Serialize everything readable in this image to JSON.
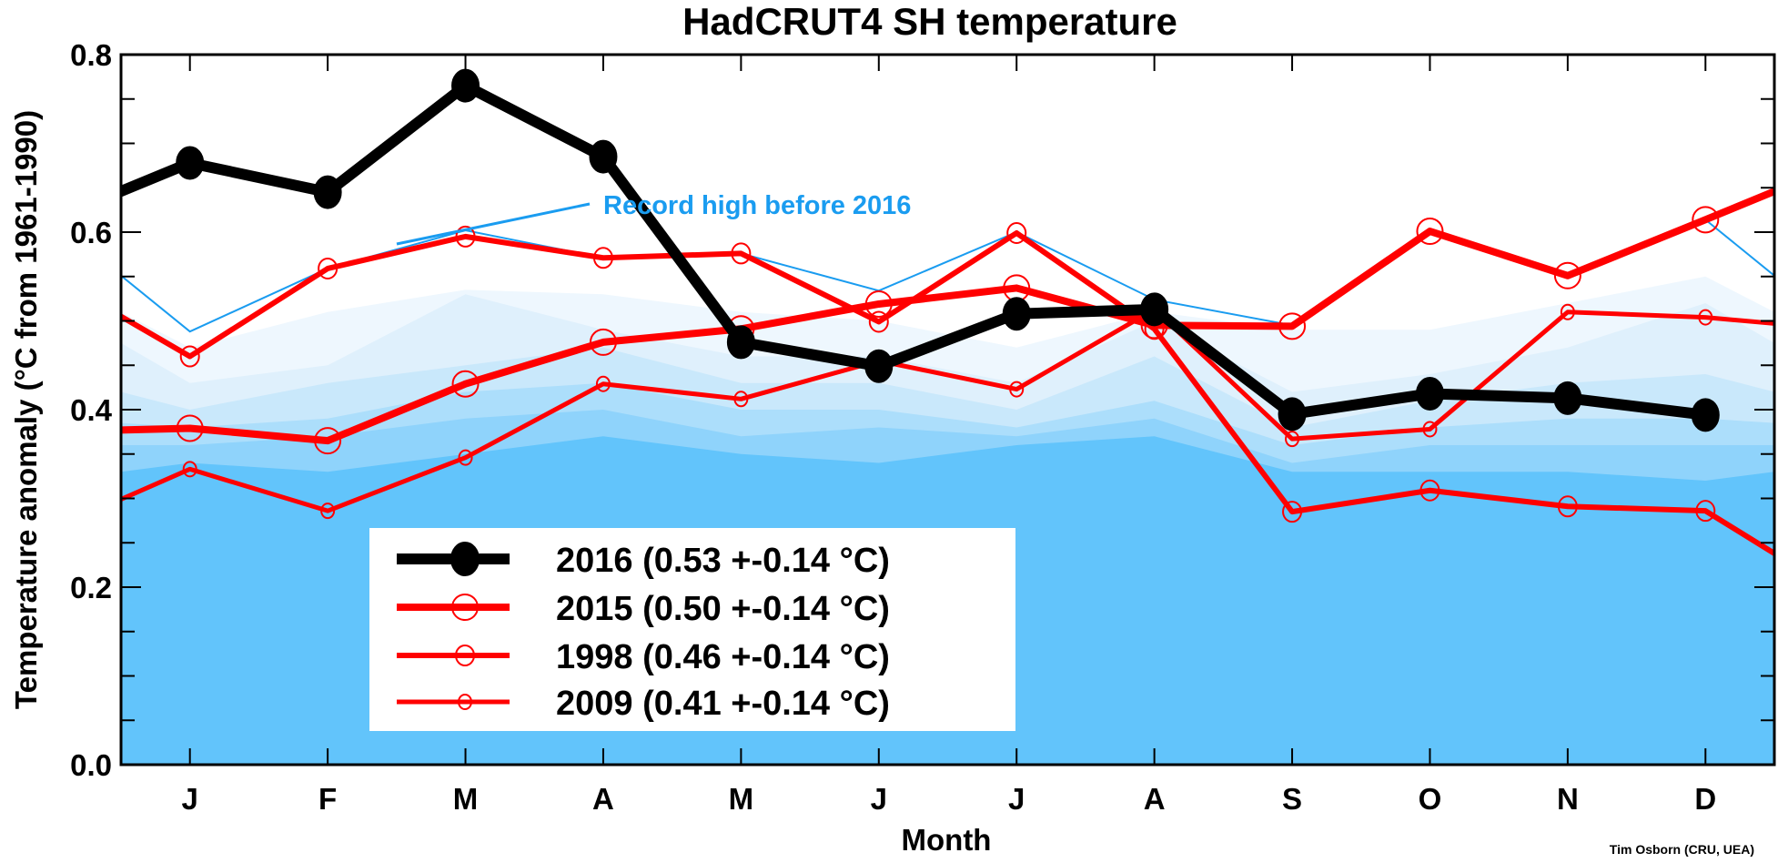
{
  "chart_data": {
    "type": "line",
    "title": "HadCRUT4 SH temperature",
    "xlabel": "Month",
    "ylabel": "Temperature anomaly (°C from 1961-1990)",
    "categories": [
      "J",
      "F",
      "M",
      "A",
      "M",
      "J",
      "J",
      "A",
      "S",
      "O",
      "N",
      "D"
    ],
    "ylim": [
      0.0,
      0.8
    ],
    "yticks": [
      "0.0",
      "0.2",
      "0.4",
      "0.6",
      "0.8"
    ],
    "grid": false,
    "legend_position": "bottom-left",
    "credit": "Tim Osborn (CRU, UEA)",
    "annotation": {
      "text": "Record high before 2016",
      "color": "#1a9cf0"
    },
    "series": [
      {
        "name": "2016",
        "legend": "2016 (0.53 +-0.14 °C)",
        "color": "#000000",
        "marker": "filled-circle",
        "values": [
          0.678,
          0.645,
          0.765,
          0.685,
          0.476,
          0.449,
          0.508,
          0.513,
          0.395,
          0.418,
          0.413,
          0.394
        ],
        "prev_dec": 0.614,
        "next_jan": null
      },
      {
        "name": "2015",
        "legend": "2015 (0.50 +-0.14 °C)",
        "color": "#ff0000",
        "marker": "open-circle-large",
        "values": [
          0.379,
          0.365,
          0.429,
          0.476,
          0.491,
          0.519,
          0.537,
          0.495,
          0.494,
          0.601,
          0.551,
          0.614
        ],
        "prev_dec": 0.375,
        "next_jan": 0.678
      },
      {
        "name": "1998",
        "legend": "1998 (0.46 +-0.14 °C)",
        "color": "#ff0000",
        "marker": "open-circle-medium",
        "values": [
          0.46,
          0.559,
          0.595,
          0.571,
          0.576,
          0.499,
          0.599,
          0.491,
          0.285,
          0.309,
          0.291,
          0.286
        ],
        "prev_dec": 0.55,
        "next_jan": 0.19
      },
      {
        "name": "2009",
        "legend": "2009 (0.41 +-0.14 °C)",
        "color": "#ff0000",
        "marker": "open-circle-small",
        "values": [
          0.333,
          0.286,
          0.346,
          0.429,
          0.412,
          0.455,
          0.423,
          0.513,
          0.367,
          0.378,
          0.51,
          0.504
        ],
        "prev_dec": 0.265,
        "next_jan": 0.49
      }
    ],
    "record_high": {
      "color": "#1a9cf0",
      "values": [
        0.488,
        0.559,
        0.602,
        0.571,
        0.576,
        0.534,
        0.6,
        0.524,
        0.495,
        0.601,
        0.551,
        0.614
      ],
      "prev_dec": 0.614,
      "next_jan": 0.488
    },
    "percentile_bands": {
      "colors": [
        "#eef7fe",
        "#dff0fc",
        "#c9e8fb",
        "#acdefb",
        "#8fd3fb",
        "#62c4fb"
      ],
      "upper_values": [
        [
          0.47,
          0.51,
          0.535,
          0.53,
          0.51,
          0.5,
          0.47,
          0.51,
          0.49,
          0.49,
          0.52,
          0.55
        ],
        [
          0.43,
          0.45,
          0.53,
          0.49,
          0.46,
          0.46,
          0.43,
          0.5,
          0.42,
          0.44,
          0.47,
          0.52
        ],
        [
          0.4,
          0.43,
          0.45,
          0.47,
          0.43,
          0.43,
          0.4,
          0.46,
          0.38,
          0.41,
          0.43,
          0.44
        ],
        [
          0.38,
          0.39,
          0.42,
          0.43,
          0.4,
          0.4,
          0.38,
          0.41,
          0.36,
          0.38,
          0.39,
          0.39
        ],
        [
          0.36,
          0.37,
          0.39,
          0.4,
          0.37,
          0.38,
          0.37,
          0.39,
          0.34,
          0.36,
          0.36,
          0.36
        ],
        [
          0.34,
          0.33,
          0.35,
          0.37,
          0.35,
          0.34,
          0.36,
          0.37,
          0.33,
          0.33,
          0.33,
          0.32
        ]
      ]
    }
  }
}
